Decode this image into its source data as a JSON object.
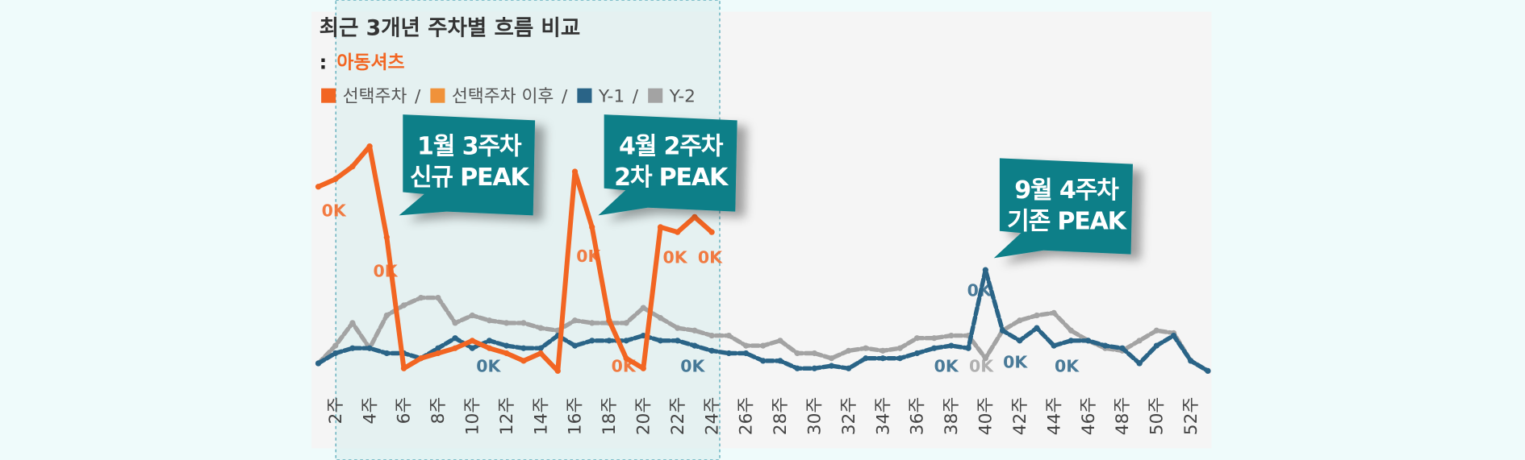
{
  "chart_data": {
    "type": "line",
    "title": "최근 3개년 주차별 흐름 비교",
    "subtitle_prefix": ":",
    "subtitle": "아동셔츠",
    "legend_separator": "/",
    "categories": [
      null,
      "2주",
      null,
      "4주",
      null,
      "6주",
      null,
      "8주",
      null,
      "10주",
      null,
      "12주",
      null,
      "14주",
      null,
      "16주",
      null,
      "18주",
      null,
      "20주",
      null,
      "22주",
      null,
      "24주",
      null,
      "26주",
      null,
      "28주",
      null,
      "30주",
      null,
      "32주",
      null,
      "34주",
      null,
      "36주",
      null,
      "38주",
      null,
      "40주",
      null,
      "42주",
      null,
      "44주",
      null,
      "46주",
      null,
      "48주",
      null,
      "50주",
      null,
      "52주",
      null
    ],
    "ylim": [
      0,
      100
    ],
    "series": [
      {
        "name": "선택주차",
        "color": "#f26522",
        "values": [
          76,
          79,
          84,
          92,
          56,
          4,
          8,
          10,
          12,
          15,
          12,
          10,
          7,
          10,
          3,
          82,
          60,
          23,
          8,
          4,
          60,
          58,
          64,
          58,
          null,
          null,
          null,
          null,
          null,
          null,
          null,
          null,
          null,
          null,
          null,
          null,
          null,
          null,
          null,
          null,
          null,
          null,
          null,
          null,
          null,
          null,
          null,
          null,
          null,
          null,
          null,
          null,
          null
        ]
      },
      {
        "name": "선택주차 이후",
        "color": "#f0923a",
        "values": [
          null,
          null,
          null,
          null,
          null,
          null,
          null,
          null,
          null,
          null,
          null,
          null,
          null,
          null,
          null,
          null,
          null,
          null,
          null,
          null,
          null,
          null,
          null,
          null,
          null,
          null,
          null,
          null,
          null,
          null,
          null,
          null,
          null,
          null,
          null,
          null,
          null,
          null,
          null,
          null,
          null,
          null,
          null,
          null,
          null,
          null,
          null,
          null,
          null,
          null,
          null,
          null,
          null
        ]
      },
      {
        "name": "Y-1",
        "color": "#2a6487",
        "values": [
          6,
          10,
          12,
          12,
          10,
          10,
          8,
          12,
          16,
          12,
          15,
          13,
          12,
          12,
          17,
          13,
          15,
          15,
          15,
          17,
          15,
          15,
          13,
          11,
          10,
          10,
          7,
          7,
          4,
          4,
          5,
          4,
          8,
          8,
          8,
          10,
          12,
          13,
          12,
          43,
          19,
          15,
          20,
          13,
          15,
          15,
          13,
          12,
          6,
          13,
          17,
          7,
          3
        ]
      },
      {
        "name": "Y-2",
        "color": "#a3a3a3",
        "values": [
          6,
          13,
          22,
          12,
          25,
          29,
          32,
          32,
          22,
          25,
          23,
          22,
          22,
          20,
          19,
          23,
          22,
          22,
          22,
          28,
          24,
          20,
          19,
          17,
          17,
          13,
          13,
          15,
          10,
          10,
          8,
          11,
          12,
          11,
          12,
          16,
          16,
          17,
          17,
          8,
          19,
          23,
          25,
          26,
          19,
          15,
          12,
          11,
          15,
          19,
          18,
          7,
          3
        ]
      }
    ],
    "annotations": [
      "0K",
      "0K",
      "0K",
      "0K",
      "0K",
      "0K",
      "0K",
      "0K",
      "0K",
      "0K",
      "0K",
      "0K",
      "0K"
    ],
    "callouts": [
      [
        "1월 3주차",
        "신규 PEAK"
      ],
      [
        "4월 2주차",
        "2차 PEAK"
      ],
      [
        "9월 4주차",
        "기존 PEAK"
      ]
    ]
  }
}
